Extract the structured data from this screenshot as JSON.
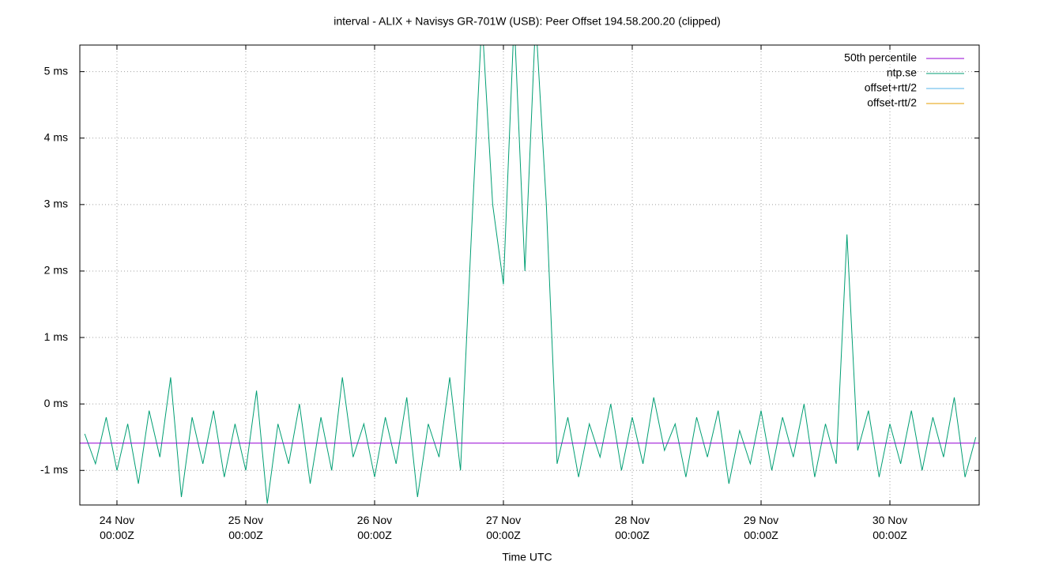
{
  "chart_data": {
    "type": "line",
    "title": "interval - ALIX + Navisys GR-701W (USB): Peer Offset 194.58.200.20 (clipped)",
    "x_label": "Time UTC",
    "xlim": [
      "23 Nov 17:05Z",
      "30 Nov 16:38Z"
    ],
    "xticks": [
      "24 Nov\n00:00Z",
      "25 Nov\n00:00Z",
      "26 Nov\n00:00Z",
      "27 Nov\n00:00Z",
      "28 Nov\n00:00Z",
      "29 Nov\n00:00Z",
      "30 Nov\n00:00Z"
    ],
    "ylim": [
      -1.52,
      5.4
    ],
    "yticks": [
      {
        "value": -1,
        "label": "-1 ms"
      },
      {
        "value": 0,
        "label": "0 ms"
      },
      {
        "value": 1,
        "label": "1 ms"
      },
      {
        "value": 2,
        "label": "2 ms"
      },
      {
        "value": 3,
        "label": "3 ms"
      },
      {
        "value": 4,
        "label": "4 ms"
      },
      {
        "value": 5,
        "label": "5 ms"
      }
    ],
    "grid": true,
    "legend": "top-right",
    "series": [
      {
        "name": "50th percentile",
        "color": "#9400d3",
        "x": [
          "23 Nov 17:05Z",
          "30 Nov 16:38Z"
        ],
        "values": [
          -0.59,
          -0.59
        ]
      },
      {
        "name": "ntp.se",
        "color": "#009e73",
        "x": [
          "23 Nov 18:00Z",
          "23 Nov 20:00Z",
          "23 Nov 22:00Z",
          "24 Nov 00:00Z",
          "24 Nov 02:00Z",
          "24 Nov 04:00Z",
          "24 Nov 06:00Z",
          "24 Nov 08:00Z",
          "24 Nov 10:00Z",
          "24 Nov 12:00Z",
          "24 Nov 14:00Z",
          "24 Nov 16:00Z",
          "24 Nov 18:00Z",
          "24 Nov 20:00Z",
          "24 Nov 22:00Z",
          "25 Nov 00:00Z",
          "25 Nov 02:00Z",
          "25 Nov 04:00Z",
          "25 Nov 06:00Z",
          "25 Nov 08:00Z",
          "25 Nov 10:00Z",
          "25 Nov 12:00Z",
          "25 Nov 14:00Z",
          "25 Nov 16:00Z",
          "25 Nov 18:00Z",
          "25 Nov 20:00Z",
          "25 Nov 22:00Z",
          "26 Nov 00:00Z",
          "26 Nov 02:00Z",
          "26 Nov 04:00Z",
          "26 Nov 06:00Z",
          "26 Nov 08:00Z",
          "26 Nov 10:00Z",
          "26 Nov 12:00Z",
          "26 Nov 14:00Z",
          "26 Nov 16:00Z",
          "26 Nov 18:00Z",
          "26 Nov 20:00Z",
          "26 Nov 22:00Z",
          "27 Nov 00:00Z",
          "27 Nov 02:00Z",
          "27 Nov 04:00Z",
          "27 Nov 06:00Z",
          "27 Nov 08:00Z",
          "27 Nov 10:00Z",
          "27 Nov 12:00Z",
          "27 Nov 14:00Z",
          "27 Nov 16:00Z",
          "27 Nov 18:00Z",
          "27 Nov 20:00Z",
          "27 Nov 22:00Z",
          "28 Nov 00:00Z",
          "28 Nov 02:00Z",
          "28 Nov 04:00Z",
          "28 Nov 06:00Z",
          "28 Nov 08:00Z",
          "28 Nov 10:00Z",
          "28 Nov 12:00Z",
          "28 Nov 14:00Z",
          "28 Nov 16:00Z",
          "28 Nov 18:00Z",
          "28 Nov 20:00Z",
          "28 Nov 22:00Z",
          "29 Nov 00:00Z",
          "29 Nov 02:00Z",
          "29 Nov 04:00Z",
          "29 Nov 06:00Z",
          "29 Nov 08:00Z",
          "29 Nov 10:00Z",
          "29 Nov 12:00Z",
          "29 Nov 14:00Z",
          "29 Nov 16:00Z",
          "29 Nov 18:00Z",
          "29 Nov 20:00Z",
          "29 Nov 22:00Z",
          "30 Nov 00:00Z",
          "30 Nov 02:00Z",
          "30 Nov 04:00Z",
          "30 Nov 06:00Z",
          "30 Nov 08:00Z",
          "30 Nov 10:00Z",
          "30 Nov 12:00Z",
          "30 Nov 14:00Z",
          "30 Nov 16:00Z"
        ],
        "values": [
          -0.45,
          -0.9,
          -0.2,
          -1.0,
          -0.3,
          -1.2,
          -0.1,
          -0.8,
          0.4,
          -1.4,
          -0.2,
          -0.9,
          -0.1,
          -1.1,
          -0.3,
          -1.0,
          0.2,
          -1.5,
          -0.3,
          -0.9,
          0.0,
          -1.2,
          -0.2,
          -1.0,
          0.4,
          -0.8,
          -0.3,
          -1.1,
          -0.2,
          -0.9,
          0.1,
          -1.4,
          -0.3,
          -0.8,
          0.4,
          -1.0,
          2.5,
          5.8,
          3.0,
          1.8,
          5.8,
          2.0,
          5.8,
          3.0,
          -0.9,
          -0.2,
          -1.1,
          -0.3,
          -0.8,
          0.0,
          -1.0,
          -0.2,
          -0.9,
          0.1,
          -0.7,
          -0.3,
          -1.1,
          -0.2,
          -0.8,
          -0.1,
          -1.2,
          -0.4,
          -0.9,
          -0.1,
          -1.0,
          -0.2,
          -0.8,
          0.0,
          -1.1,
          -0.3,
          -0.9,
          2.55,
          -0.7,
          -0.1,
          -1.1,
          -0.3,
          -0.9,
          -0.1,
          -1.0,
          -0.2,
          -0.8,
          0.1,
          -1.1,
          -0.5
        ]
      },
      {
        "name": "offset+rtt/2",
        "color": "#56b4e9"
      },
      {
        "name": "offset-rtt/2",
        "color": "#e69f00"
      }
    ]
  }
}
